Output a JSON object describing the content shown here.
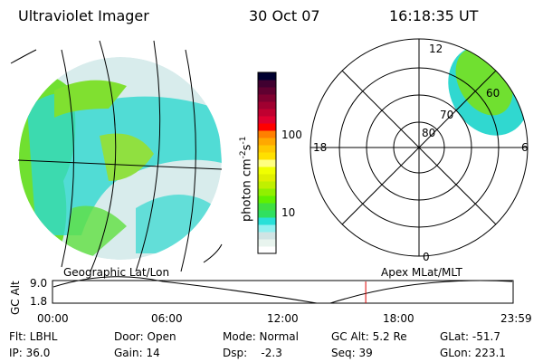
{
  "header": {
    "instrument": "Ultraviolet Imager",
    "date": "30 Oct 07",
    "time": "16:18:35 UT"
  },
  "colorbar": {
    "label": "photon cm",
    "exp1": "-2",
    "mid": "s",
    "exp2": "-1",
    "ticks": [
      "100",
      "10"
    ],
    "colors": [
      "#ffffff",
      "#e8f4ee",
      "#d0e4e4",
      "#90f0f0",
      "#28e0d8",
      "#30e060",
      "#40e040",
      "#60f000",
      "#90f000",
      "#c0f000",
      "#e0f000",
      "#f0ff00",
      "#ffff80",
      "#ffe000",
      "#ffc800",
      "#ffa800",
      "#ff8000",
      "#ff0000",
      "#e00030",
      "#c00030",
      "#a00030",
      "#800030",
      "#600030",
      "#400030",
      "#000030"
    ]
  },
  "polar": {
    "labels": {
      "top": "12",
      "bottom": "0",
      "left": "18",
      "right": "6"
    },
    "rings": [
      "80",
      "70",
      "60"
    ]
  },
  "plot": {
    "left_label": "Geographic Lat/Lon",
    "right_label": "Apex MLat/MLT",
    "ylabel": "GC Alt",
    "yticks": [
      "9.0",
      "1.8"
    ],
    "xticks": [
      "00:00",
      "06:00",
      "12:00",
      "18:00",
      "23:59"
    ],
    "current_time_fraction": 0.68,
    "line_color": "#e00000"
  },
  "info": {
    "flt": "Flt: LBHL",
    "ip": "IP: 36.0",
    "door": "Door: Open",
    "gain": "Gain: 14",
    "mode": "Mode: Normal",
    "dsp": "Dsp:    -2.3",
    "gcalt": "GC Alt: 5.2 Re",
    "seq": "Seq: 39",
    "glat": "GLat: -51.7",
    "glon": "GLon: 223.1"
  }
}
